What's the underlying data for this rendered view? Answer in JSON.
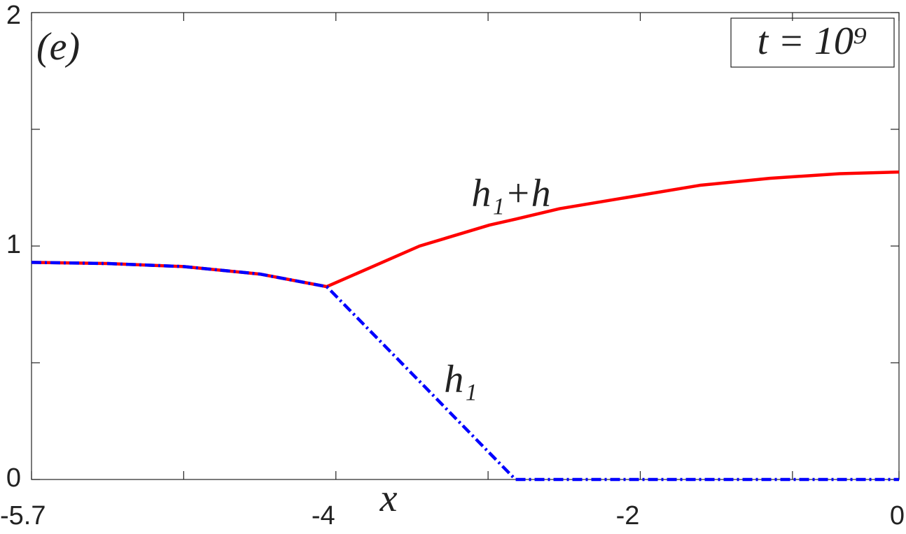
{
  "chart_data": {
    "type": "line",
    "panel_label": "(e)",
    "time_label": "t = 10⁹",
    "x_label": "x",
    "annotations": [
      "h₁+h",
      "h₁"
    ],
    "x": [
      -6,
      -5.5,
      -5,
      -4.5,
      -4.06,
      -3.45,
      -2.99,
      -2.82,
      -2.53,
      -2.07,
      -1.61,
      -1.15,
      -0.69,
      -0.3
    ],
    "series": [
      {
        "name": "h₁+h",
        "color": "#ff0000",
        "style": "solid",
        "values": [
          0.93,
          0.925,
          0.912,
          0.88,
          0.826,
          1.0,
          1.09,
          1.115,
          1.16,
          1.21,
          1.26,
          1.29,
          1.31,
          1.317
        ]
      },
      {
        "name": "h₁",
        "color": "#0000ff",
        "style": "dashdot",
        "values": [
          0.93,
          0.925,
          0.912,
          0.88,
          0.826,
          0.42,
          0.113,
          0,
          0,
          0,
          0,
          0,
          0,
          0
        ]
      }
    ],
    "xlim": [
      -6,
      -0.3
    ],
    "ylim": [
      0,
      2
    ],
    "xticks": [
      {
        "value": -6,
        "label": "-5.7"
      },
      {
        "value": -5,
        "label": null
      },
      -4,
      {
        "value": -3,
        "label": null
      },
      -2,
      {
        "value": -1,
        "label": null
      },
      {
        "value": -0.3,
        "label": "0"
      }
    ],
    "yticks": [
      0,
      {
        "value": 0.5,
        "label": null
      },
      1,
      {
        "value": 1.5,
        "label": null
      },
      2
    ],
    "grid": false
  }
}
